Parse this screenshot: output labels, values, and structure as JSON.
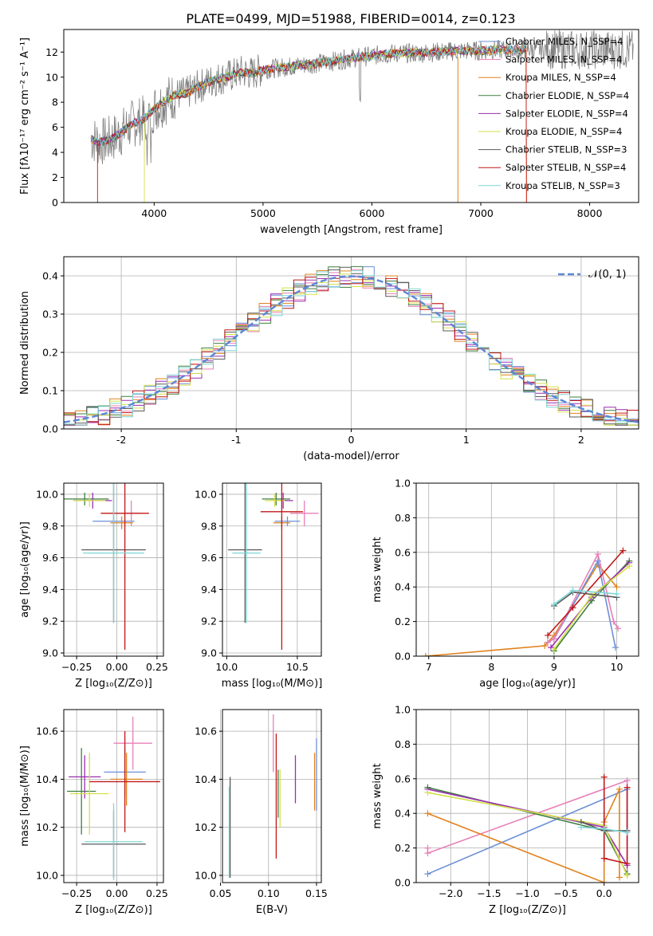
{
  "figure_title": "PLATE=0499, MJD=51988, FIBERID=0014, z=0.123",
  "colors": {
    "chabrier_miles": "#6b8fd6",
    "salpeter_miles": "#e87fb8",
    "kroupa_miles": "#e0821e",
    "chabrier_elodie": "#3f7f3f",
    "salpeter_elodie": "#9a2fb0",
    "kroupa_elodie": "#d4e04a",
    "chabrier_stelib": "#5a5a5a",
    "salpeter_stelib": "#c01818",
    "kroupa_stelib": "#7fd6d6",
    "raw_spectrum": "#808080",
    "gaussian": "#5b86d6",
    "grid": "#b0b0b0"
  },
  "chart_data": [
    {
      "id": "spectrum",
      "type": "line",
      "xlabel": "wavelength [Angstrom, rest frame]",
      "ylabel": "Flux [fλ10⁻¹⁷ erg cm⁻² s⁻¹ A⁻¹]",
      "xlim": [
        3170,
        8450
      ],
      "ylim": [
        0,
        13.8
      ],
      "xticks": [
        4000,
        5000,
        6000,
        7000,
        8000
      ],
      "yticks": [
        0,
        2,
        4,
        6,
        8,
        10,
        12
      ],
      "grid": false,
      "legend_position": "top-right",
      "legend": [
        "Chabrier MILES, N_SSP=4",
        "Salpeter MILES, N_SSP=4",
        "Kroupa MILES, N_SSP=4",
        "Chabrier ELODIE, N_SSP=4",
        "Salpeter ELODIE, N_SSP=4",
        "Kroupa ELODIE, N_SSP=4",
        "Chabrier STELIB, N_SSP=3",
        "Salpeter STELIB, N_SSP=4",
        "Kroupa STELIB, N_SSP=3"
      ],
      "continuum": {
        "x": [
          3400,
          3500,
          3600,
          3700,
          3800,
          3900,
          4000,
          4100,
          4200,
          4300,
          4400,
          4500,
          4600,
          4700,
          4800,
          4900,
          5000,
          5200,
          5400,
          5600,
          5800,
          6000,
          6200,
          6400,
          6600,
          6800,
          7000,
          7200,
          7400
        ],
        "y": [
          5.2,
          4.8,
          5.0,
          5.6,
          6.3,
          6.6,
          7.5,
          8.1,
          8.6,
          8.7,
          9.2,
          9.6,
          9.9,
          10.1,
          10.4,
          10.3,
          10.6,
          10.8,
          11.0,
          11.2,
          11.5,
          11.7,
          11.9,
          11.9,
          12.0,
          12.1,
          12.1,
          12.2,
          12.2
        ]
      }
    },
    {
      "id": "residuals",
      "type": "histogram",
      "xlabel": "(data-model)/error",
      "ylabel": "Normed distribution",
      "xlim": [
        -2.5,
        2.5
      ],
      "ylim": [
        0,
        0.45
      ],
      "xticks": [
        -2,
        -1,
        0,
        1,
        2
      ],
      "yticks": [
        0.0,
        0.1,
        0.2,
        0.3,
        0.4
      ],
      "grid": true,
      "legend_position": "top-right",
      "legend": [
        "𝒩(0, 1)"
      ],
      "gaussian": {
        "mean": 0,
        "sigma": 1
      }
    },
    {
      "id": "age_vs_Z",
      "type": "errorbar",
      "xlabel": "Z [log₁₀(Z/Z⊙)]",
      "ylabel": "age  [log₁₀(age/yr)]",
      "xlim": [
        -0.33,
        0.29
      ],
      "ylim": [
        8.98,
        10.07
      ],
      "xticks": [
        -0.25,
        0.0,
        0.25
      ],
      "xticklabels": [
        "−0.25",
        "0.00",
        "0.25"
      ],
      "yticks": [
        9.0,
        9.2,
        9.4,
        9.6,
        9.8,
        10.0
      ],
      "grid": true,
      "points": [
        {
          "series": "chabrier_miles",
          "x": -0.02,
          "xerr": 0.13,
          "y": 9.83,
          "yerr": 0.03
        },
        {
          "series": "salpeter_miles",
          "x": 0.09,
          "xerr": 0.06,
          "y": 9.88,
          "yerr": 0.08
        },
        {
          "series": "kroupa_miles",
          "x": 0.03,
          "xerr": 0.07,
          "y": 9.82,
          "yerr": 0.04
        },
        {
          "series": "chabrier_elodie",
          "x": -0.2,
          "xerr": 0.15,
          "y": 9.97,
          "yerr": 0.04
        },
        {
          "series": "salpeter_elodie",
          "x": -0.15,
          "xerr": 0.12,
          "y": 9.96,
          "yerr": 0.05
        },
        {
          "series": "kroupa_elodie",
          "x": -0.17,
          "xerr": 0.1,
          "y": 9.96,
          "yerr": 0.04
        },
        {
          "series": "chabrier_stelib",
          "x": -0.02,
          "xerr": 0.2,
          "y": 9.65,
          "yerr": 0.46
        },
        {
          "series": "salpeter_stelib",
          "x": 0.05,
          "xerr": 0.15,
          "y": 9.88,
          "yerr": 0.86
        },
        {
          "series": "kroupa_stelib",
          "x": -0.02,
          "xerr": 0.19,
          "y": 9.63,
          "yerr": 0.44
        }
      ]
    },
    {
      "id": "age_vs_mass",
      "type": "errorbar",
      "xlabel": "mass [log₁₀(M/M⊙)]",
      "xlim": [
        9.97,
        10.67
      ],
      "ylim": [
        8.98,
        10.07
      ],
      "xticks": [
        10.0,
        10.5
      ],
      "xticklabels": [
        "10.0",
        "10.5"
      ],
      "yticks": [
        9.0,
        9.2,
        9.4,
        9.6,
        9.8,
        10.0
      ],
      "grid": true,
      "points": [
        {
          "series": "chabrier_miles",
          "x": 10.43,
          "xerr": 0.09,
          "y": 9.83,
          "yerr": 0.03
        },
        {
          "series": "salpeter_miles",
          "x": 10.55,
          "xerr": 0.1,
          "y": 9.88,
          "yerr": 0.08
        },
        {
          "series": "kroupa_miles",
          "x": 10.39,
          "xerr": 0.06,
          "y": 9.82,
          "yerr": 0.04
        },
        {
          "series": "chabrier_elodie",
          "x": 10.35,
          "xerr": 0.1,
          "y": 9.97,
          "yerr": 0.04
        },
        {
          "series": "salpeter_elodie",
          "x": 10.4,
          "xerr": 0.07,
          "y": 9.96,
          "yerr": 0.05
        },
        {
          "series": "kroupa_elodie",
          "x": 10.34,
          "xerr": 0.07,
          "y": 9.96,
          "yerr": 0.04
        },
        {
          "series": "chabrier_stelib",
          "x": 10.13,
          "xerr": 0.12,
          "y": 9.65,
          "yerr": 0.46
        },
        {
          "series": "salpeter_stelib",
          "x": 10.39,
          "xerr": 0.15,
          "y": 9.89,
          "yerr": 0.87
        },
        {
          "series": "kroupa_stelib",
          "x": 10.14,
          "xerr": 0.1,
          "y": 9.63,
          "yerr": 0.44
        }
      ]
    },
    {
      "id": "weight_vs_age",
      "type": "line",
      "xlabel": "age  [log₁₀(age/yr)]",
      "ylabel": "mass weight",
      "xlim": [
        6.8,
        10.35
      ],
      "ylim": [
        0,
        1.0
      ],
      "xticks": [
        7,
        8,
        9,
        10
      ],
      "yticks": [
        0.0,
        0.2,
        0.4,
        0.6,
        0.8,
        1.0
      ],
      "grid": true,
      "series": [
        {
          "key": "kroupa_miles",
          "x": [
            6.95,
            8.85,
            9.0,
            9.7,
            10.0
          ],
          "y": [
            0.0,
            0.06,
            0.12,
            0.53,
            0.4
          ]
        },
        {
          "key": "chabrier_miles",
          "x": [
            8.9,
            9.0,
            9.7,
            9.98
          ],
          "y": [
            0.08,
            0.1,
            0.55,
            0.05
          ]
        },
        {
          "key": "salpeter_miles",
          "x": [
            8.9,
            9.0,
            9.7,
            9.95,
            10.02
          ],
          "y": [
            0.08,
            0.1,
            0.59,
            0.2,
            0.16
          ]
        },
        {
          "key": "chabrier_elodie",
          "x": [
            9.0,
            9.6,
            10.2
          ],
          "y": [
            0.03,
            0.32,
            0.55
          ]
        },
        {
          "key": "salpeter_elodie",
          "x": [
            8.95,
            9.6,
            10.2
          ],
          "y": [
            0.05,
            0.34,
            0.54
          ]
        },
        {
          "key": "kroupa_elodie",
          "x": [
            9.0,
            9.6,
            10.2
          ],
          "y": [
            0.04,
            0.35,
            0.52
          ]
        },
        {
          "key": "salpeter_stelib",
          "x": [
            8.9,
            9.3,
            10.1
          ],
          "y": [
            0.12,
            0.28,
            0.61
          ]
        },
        {
          "key": "chabrier_stelib",
          "x": [
            9.0,
            9.3,
            10.0
          ],
          "y": [
            0.29,
            0.37,
            0.34
          ]
        },
        {
          "key": "kroupa_stelib",
          "x": [
            9.0,
            9.3,
            10.0
          ],
          "y": [
            0.3,
            0.38,
            0.36
          ]
        }
      ]
    },
    {
      "id": "mass_vs_Z",
      "type": "errorbar",
      "xlabel": "Z [log₁₀(Z/Z⊙)]",
      "ylabel": "mass [log₁₀(M/M⊙)]",
      "xlim": [
        -0.33,
        0.29
      ],
      "ylim": [
        9.97,
        10.69
      ],
      "xticks": [
        -0.25,
        0.0,
        0.25
      ],
      "xticklabels": [
        "−0.25",
        "0.00",
        "0.25"
      ],
      "yticks": [
        10.0,
        10.2,
        10.4,
        10.6
      ],
      "grid": true,
      "points": [
        {
          "series": "chabrier_miles",
          "x": 0.05,
          "xerr": 0.13,
          "y": 10.43,
          "yerr": 0.1
        },
        {
          "series": "salpeter_miles",
          "x": 0.1,
          "xerr": 0.12,
          "y": 10.55,
          "yerr": 0.11
        },
        {
          "series": "kroupa_miles",
          "x": 0.06,
          "xerr": 0.1,
          "y": 10.4,
          "yerr": 0.11
        },
        {
          "series": "chabrier_elodie",
          "x": -0.22,
          "xerr": 0.09,
          "y": 10.35,
          "yerr": 0.18
        },
        {
          "series": "salpeter_elodie",
          "x": -0.2,
          "xerr": 0.1,
          "y": 10.41,
          "yerr": 0.09
        },
        {
          "series": "kroupa_elodie",
          "x": -0.17,
          "xerr": 0.12,
          "y": 10.34,
          "yerr": 0.17
        },
        {
          "series": "chabrier_stelib",
          "x": -0.02,
          "xerr": 0.2,
          "y": 10.13,
          "yerr": 0.14
        },
        {
          "series": "salpeter_stelib",
          "x": 0.05,
          "xerr": 0.22,
          "y": 10.39,
          "yerr": 0.21
        },
        {
          "series": "kroupa_stelib",
          "x": -0.02,
          "xerr": 0.18,
          "y": 10.14,
          "yerr": 0.16
        }
      ]
    },
    {
      "id": "mass_vs_ebv",
      "type": "errorbar",
      "xlabel": "E(B-V)",
      "xlim": [
        0.052,
        0.155
      ],
      "ylim": [
        9.97,
        10.69
      ],
      "xticks": [
        0.05,
        0.1,
        0.15
      ],
      "xticklabels": [
        "0.05",
        "0.10",
        "0.15"
      ],
      "yticks": [
        10.0,
        10.2,
        10.4,
        10.6
      ],
      "grid": true,
      "points": [
        {
          "series": "chabrier_miles",
          "x": 0.15,
          "xerr": 0,
          "y": 10.42,
          "yerr": 0.15
        },
        {
          "series": "salpeter_miles",
          "x": 0.105,
          "xerr": 0,
          "y": 10.55,
          "yerr": 0.12
        },
        {
          "series": "kroupa_miles",
          "x": 0.148,
          "xerr": 0,
          "y": 10.39,
          "yerr": 0.12
        },
        {
          "series": "chabrier_elodie",
          "x": 0.11,
          "xerr": 0,
          "y": 10.34,
          "yerr": 0.1
        },
        {
          "series": "salpeter_elodie",
          "x": 0.128,
          "xerr": 0,
          "y": 10.4,
          "yerr": 0.1
        },
        {
          "series": "kroupa_elodie",
          "x": 0.112,
          "xerr": 0,
          "y": 10.32,
          "yerr": 0.12
        },
        {
          "series": "chabrier_stelib",
          "x": 0.06,
          "xerr": 0,
          "y": 10.2,
          "yerr": 0.21
        },
        {
          "series": "salpeter_stelib",
          "x": 0.108,
          "xerr": 0,
          "y": 10.33,
          "yerr": 0.26
        },
        {
          "series": "kroupa_stelib",
          "x": 0.059,
          "xerr": 0,
          "y": 10.18,
          "yerr": 0.19
        }
      ]
    },
    {
      "id": "weight_vs_Z",
      "type": "line",
      "xlabel": "Z [log₁₀(Z/Z⊙)]",
      "ylabel": "mass weight",
      "xlim": [
        -2.45,
        0.45
      ],
      "ylim": [
        0,
        1.0
      ],
      "xticks": [
        -2.0,
        -1.5,
        -1.0,
        -0.5,
        0.0
      ],
      "xticklabels": [
        "−2.0",
        "−1.5",
        "−1.0",
        "−0.5",
        "0.0"
      ],
      "yticks": [
        0.0,
        0.2,
        0.4,
        0.6,
        0.8,
        1.0
      ],
      "grid": true,
      "series": [
        {
          "key": "chabrier_miles",
          "x": [
            -2.3,
            0.3,
            0.3
          ],
          "y": [
            0.05,
            0.54,
            0.3
          ]
        },
        {
          "key": "salpeter_miles",
          "x": [
            -2.3,
            -2.3,
            0.3,
            0.3
          ],
          "y": [
            0.2,
            0.17,
            0.59,
            0.05
          ]
        },
        {
          "key": "kroupa_miles",
          "x": [
            -2.3,
            0.0,
            0.0,
            0.2,
            0.2
          ],
          "y": [
            0.4,
            0.0,
            0.35,
            0.54,
            0.03
          ]
        },
        {
          "key": "chabrier_elodie",
          "x": [
            -2.3,
            0.0,
            0.3
          ],
          "y": [
            0.55,
            0.3,
            0.05
          ]
        },
        {
          "key": "salpeter_elodie",
          "x": [
            -2.3,
            0.0,
            0.3
          ],
          "y": [
            0.54,
            0.32,
            0.1
          ]
        },
        {
          "key": "kroupa_elodie",
          "x": [
            -2.3,
            0.0,
            0.3
          ],
          "y": [
            0.52,
            0.33,
            0.04
          ]
        },
        {
          "key": "salpeter_stelib",
          "x": [
            0.0,
            0.0,
            0.3,
            0.3
          ],
          "y": [
            0.61,
            0.14,
            0.11,
            0.55
          ]
        },
        {
          "key": "chabrier_stelib",
          "x": [
            -0.3,
            0.0,
            0.3
          ],
          "y": [
            0.35,
            0.3,
            0.3
          ]
        },
        {
          "key": "kroupa_stelib",
          "x": [
            -0.3,
            0.0,
            0.3
          ],
          "y": [
            0.32,
            0.31,
            0.29
          ]
        }
      ]
    }
  ]
}
